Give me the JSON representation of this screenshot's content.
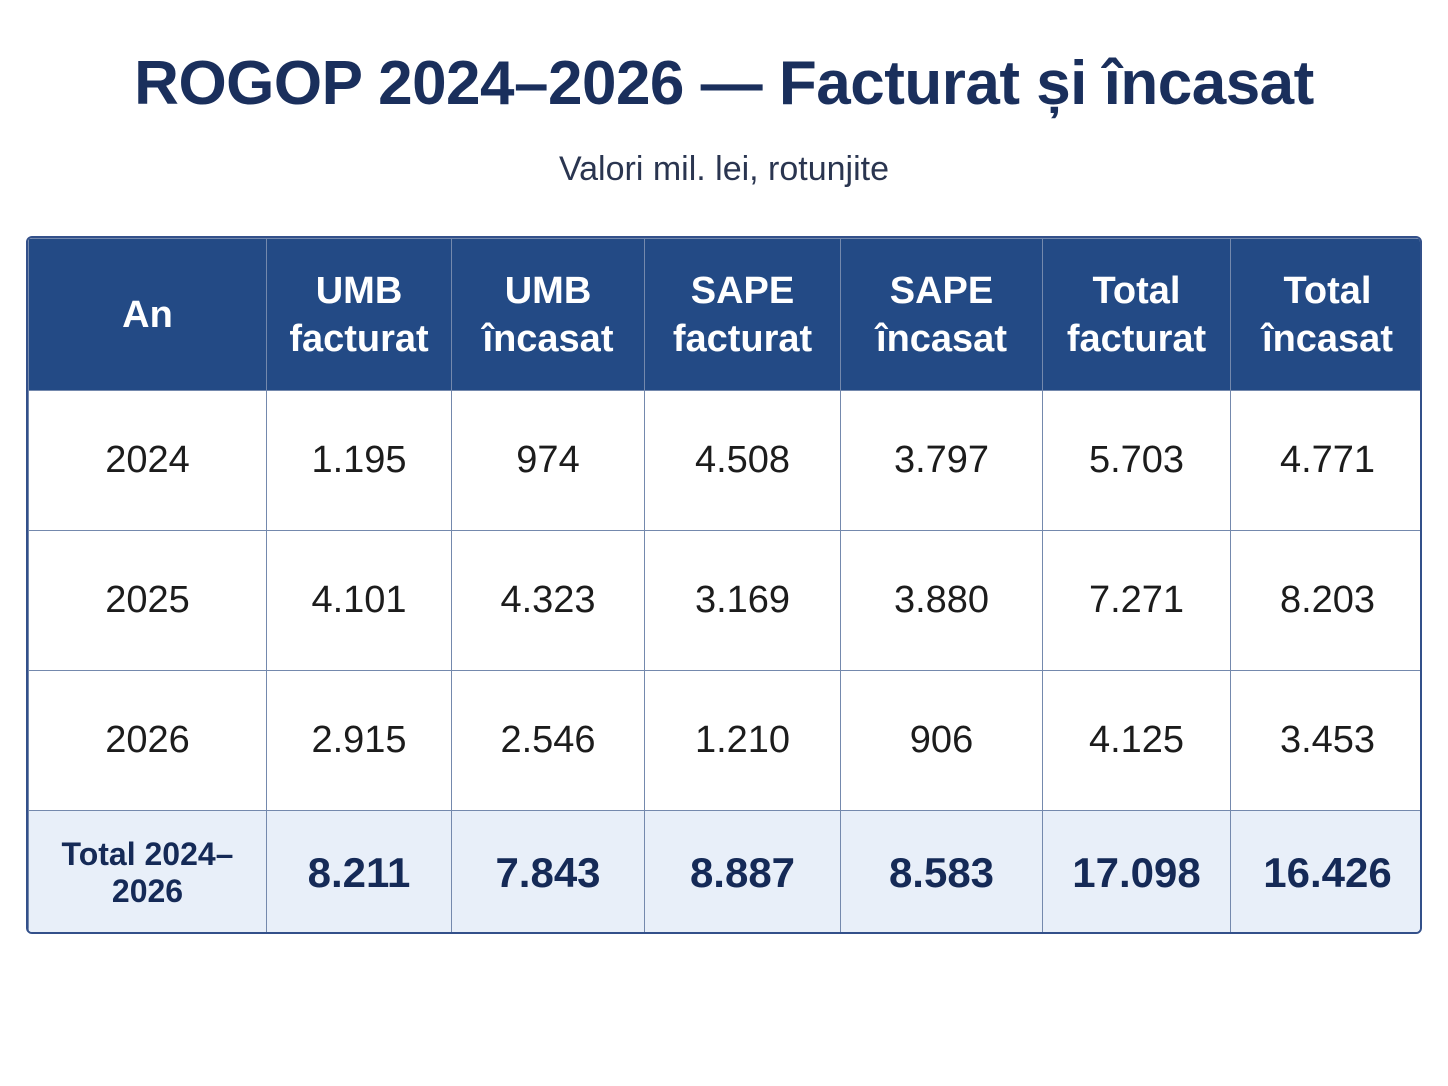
{
  "chart_data": {
    "type": "table",
    "title": "ROGOP 2024–2026 — Facturat și încasat",
    "subtitle": "Valori mil. lei, rotunjite",
    "columns": [
      {
        "line1": "An",
        "line2": ""
      },
      {
        "line1": "UMB",
        "line2": "facturat"
      },
      {
        "line1": "UMB",
        "line2": "încasat"
      },
      {
        "line1": "SAPE",
        "line2": "facturat"
      },
      {
        "line1": "SAPE",
        "line2": "încasat"
      },
      {
        "line1": "Total",
        "line2": "facturat"
      },
      {
        "line1": "Total",
        "line2": "încasat"
      }
    ],
    "rows": [
      [
        "2024",
        "1.195",
        "974",
        "4.508",
        "3.797",
        "5.703",
        "4.771"
      ],
      [
        "2025",
        "4.101",
        "4.323",
        "3.169",
        "3.880",
        "7.271",
        "8.203"
      ],
      [
        "2026",
        "2.915",
        "2.546",
        "1.210",
        "906",
        "4.125",
        "3.453"
      ]
    ],
    "total_row": [
      "Total 2024–2026",
      "8.211",
      "7.843",
      "8.887",
      "8.583",
      "17.098",
      "16.426"
    ]
  },
  "colors": {
    "header_bg": "#234a85",
    "title": "#1a2f5c",
    "total_bg": "#e8eff9"
  }
}
